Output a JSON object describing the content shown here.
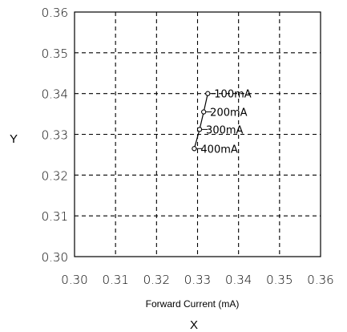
{
  "chart_data": {
    "type": "line",
    "xlabel": "X",
    "ylabel": "Y",
    "x_sublabel": "Forward Current (mA)",
    "xlim": [
      0.3,
      0.36
    ],
    "ylim": [
      0.3,
      0.36
    ],
    "xticks": [
      "0.30",
      "0.31",
      "0.32",
      "0.33",
      "0.34",
      "0.35",
      "0.36"
    ],
    "yticks": [
      "0.30",
      "0.31",
      "0.32",
      "0.33",
      "0.34",
      "0.35",
      "0.36"
    ],
    "grid": true,
    "series": [
      {
        "points": [
          {
            "x": 0.3325,
            "y": 0.34,
            "label": "100mA"
          },
          {
            "x": 0.3315,
            "y": 0.3355,
            "label": "200mA"
          },
          {
            "x": 0.3305,
            "y": 0.3312,
            "label": "300mA"
          },
          {
            "x": 0.3292,
            "y": 0.3265,
            "label": "400mA"
          }
        ]
      }
    ]
  },
  "colors": {
    "line": "#000000",
    "grid": "#000000",
    "background": "#ffffff"
  }
}
